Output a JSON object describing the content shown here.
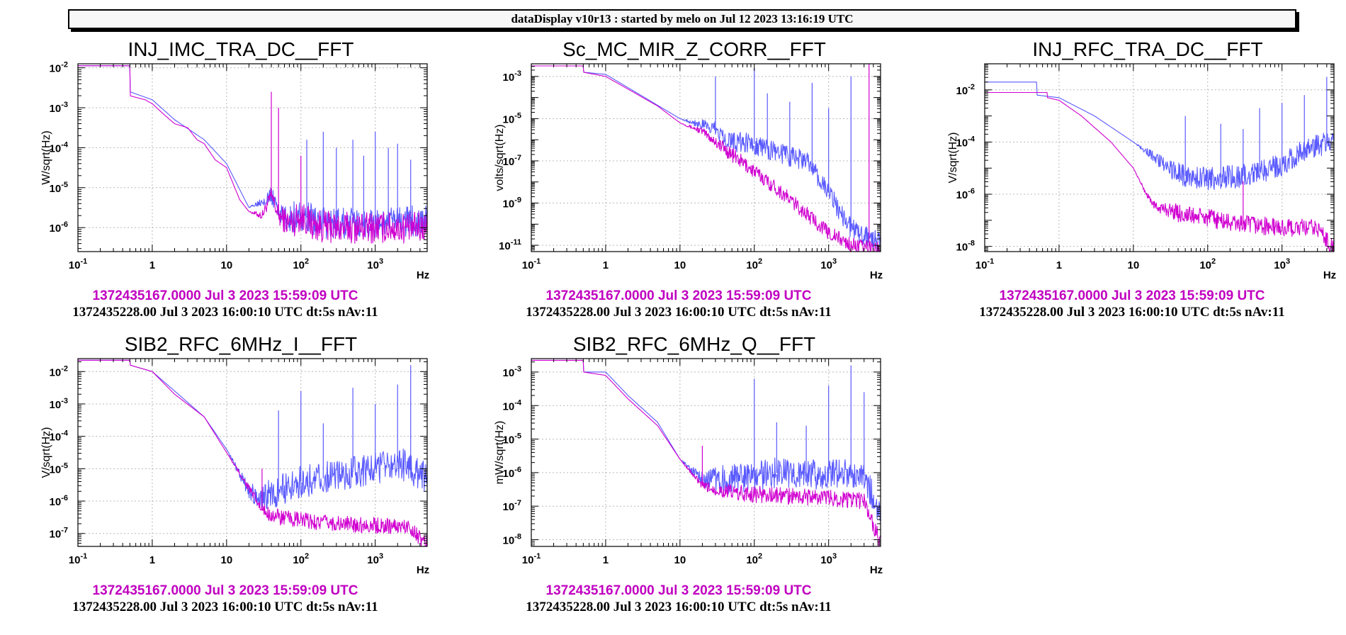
{
  "header": {
    "title": "dataDisplay v10r13 : started by melo on Jul 12 2023 13:16:19 UTC"
  },
  "colors": {
    "ref": "#d000d0",
    "cur": "#5a5aff",
    "grid": "#b8b8b8"
  },
  "chart_data": [
    {
      "type": "line",
      "title": "INJ_IMC_TRA_DC__FFT",
      "ylabel": "W/sqrt(Hz)",
      "xlabel": "Hz",
      "x_scale": "log",
      "y_scale": "log",
      "xlim": [
        0.1,
        5000
      ],
      "ylim_exp": [
        -6.6,
        -1.9
      ],
      "xticks": [
        "10^-1",
        "1",
        "10",
        "10^2",
        "10^3"
      ],
      "yticks": [
        -6,
        -5,
        -4,
        -3,
        -2
      ],
      "grid": true,
      "series": [
        {
          "role": "reference",
          "color": "#d000d0",
          "points": [
            [
              0.1,
              -1.95
            ],
            [
              0.5,
              -1.95
            ],
            [
              0.5,
              -2.7
            ],
            [
              0.8,
              -2.8
            ],
            [
              1,
              -2.9
            ],
            [
              1.5,
              -3.2
            ],
            [
              2,
              -3.4
            ],
            [
              3,
              -3.5
            ],
            [
              4,
              -3.8
            ],
            [
              5,
              -3.9
            ],
            [
              7,
              -4.3
            ],
            [
              10,
              -4.5
            ],
            [
              15,
              -5.3
            ],
            [
              20,
              -5.6
            ],
            [
              30,
              -5.7
            ],
            [
              40,
              -5.2
            ],
            [
              50,
              -5.7
            ],
            [
              70,
              -5.9
            ],
            [
              100,
              -5.7
            ],
            [
              150,
              -5.95
            ],
            [
              300,
              -6.0
            ],
            [
              1000,
              -6.0
            ],
            [
              2000,
              -6.0
            ],
            [
              5000,
              -6.0
            ]
          ],
          "noise_from": 20,
          "noise_amp": 0.4
        },
        {
          "role": "current",
          "color": "#5a5aff",
          "points": [
            [
              0.1,
              -1.95
            ],
            [
              0.5,
              -1.95
            ],
            [
              0.5,
              -2.6
            ],
            [
              1,
              -2.8
            ],
            [
              2,
              -3.3
            ],
            [
              5,
              -3.8
            ],
            [
              10,
              -4.4
            ],
            [
              20,
              -5.5
            ],
            [
              40,
              -5.2
            ],
            [
              60,
              -5.8
            ],
            [
              100,
              -5.7
            ],
            [
              200,
              -5.9
            ],
            [
              1000,
              -5.9
            ],
            [
              5000,
              -5.8
            ]
          ],
          "noise_from": 20,
          "noise_amp": 0.4
        }
      ],
      "spikes": [
        {
          "x": 40,
          "y": -2.6,
          "series": "reference"
        },
        {
          "x": 50,
          "y": -3.0,
          "series": "reference"
        },
        {
          "x": 100,
          "y": -4.2,
          "series": "reference"
        },
        {
          "x": 120,
          "y": -3.8,
          "series": "current"
        },
        {
          "x": 200,
          "y": -3.6,
          "series": "current"
        },
        {
          "x": 300,
          "y": -4.0,
          "series": "current"
        },
        {
          "x": 500,
          "y": -3.8,
          "series": "current"
        },
        {
          "x": 700,
          "y": -4.2,
          "series": "current"
        },
        {
          "x": 1000,
          "y": -3.6,
          "series": "current"
        },
        {
          "x": 1500,
          "y": -4.0,
          "series": "current"
        },
        {
          "x": 2000,
          "y": -3.9,
          "series": "current"
        },
        {
          "x": 3000,
          "y": -4.3,
          "series": "current"
        }
      ],
      "ref_time": "1372435167.0000 Jul 3 2023 15:59:09 UTC",
      "cur_time": "1372435228.00 Jul 3 2023 16:00:10 UTC dt:5s nAv:11"
    },
    {
      "type": "line",
      "title": "Sc_MC_MIR_Z_CORR__FFT",
      "ylabel": "volts/sqrt(Hz)",
      "xlabel": "Hz",
      "x_scale": "log",
      "y_scale": "log",
      "xlim": [
        0.1,
        5000
      ],
      "ylim_exp": [
        -11.3,
        -2.4
      ],
      "xticks": [
        "10^-1",
        "1",
        "10",
        "10^2",
        "10^3"
      ],
      "yticks": [
        -11,
        -9,
        -7,
        -5,
        -3
      ],
      "grid": true,
      "series": [
        {
          "role": "reference",
          "color": "#d000d0",
          "points": [
            [
              0.1,
              -2.5
            ],
            [
              0.5,
              -2.5
            ],
            [
              0.5,
              -2.8
            ],
            [
              1,
              -3.0
            ],
            [
              2,
              -3.6
            ],
            [
              5,
              -4.4
            ],
            [
              10,
              -5.2
            ],
            [
              20,
              -5.6
            ],
            [
              50,
              -6.7
            ],
            [
              100,
              -7.5
            ],
            [
              200,
              -8.3
            ],
            [
              500,
              -9.5
            ],
            [
              1000,
              -10.4
            ],
            [
              2000,
              -11.0
            ],
            [
              5000,
              -11.2
            ]
          ],
          "noise_from": 10,
          "noise_amp": 0.35
        },
        {
          "role": "current",
          "color": "#5a5aff",
          "points": [
            [
              0.1,
              -2.5
            ],
            [
              0.5,
              -2.5
            ],
            [
              0.5,
              -2.8
            ],
            [
              1,
              -2.9
            ],
            [
              3,
              -3.9
            ],
            [
              10,
              -5.0
            ],
            [
              20,
              -5.3
            ],
            [
              30,
              -5.5
            ],
            [
              50,
              -6.1
            ],
            [
              100,
              -6.2
            ],
            [
              200,
              -6.6
            ],
            [
              500,
              -7.0
            ],
            [
              1000,
              -8.5
            ],
            [
              2000,
              -10.2
            ],
            [
              5000,
              -10.9
            ]
          ],
          "noise_from": 10,
          "noise_amp": 0.5
        }
      ],
      "spikes": [
        {
          "x": 30,
          "y": -3.0,
          "series": "current"
        },
        {
          "x": 100,
          "y": -2.6,
          "series": "current"
        },
        {
          "x": 150,
          "y": -3.8,
          "series": "current"
        },
        {
          "x": 300,
          "y": -4.2,
          "series": "current"
        },
        {
          "x": 600,
          "y": -3.3,
          "series": "current"
        },
        {
          "x": 1000,
          "y": -4.5,
          "series": "current"
        },
        {
          "x": 2000,
          "y": -3.0,
          "series": "current"
        },
        {
          "x": 3500,
          "y": -2.4,
          "series": "reference"
        }
      ],
      "ref_time": "1372435167.0000 Jul 3 2023 15:59:09 UTC",
      "cur_time": "1372435228.00 Jul 3 2023 16:00:10 UTC dt:5s nAv:11"
    },
    {
      "type": "line",
      "title": "INJ_RFC_TRA_DC__FFT",
      "ylabel": "V/sqrt(Hz)",
      "xlabel": "Hz",
      "x_scale": "log",
      "y_scale": "log",
      "xlim": [
        0.1,
        5000
      ],
      "ylim_exp": [
        -8.2,
        -1.0
      ],
      "xticks": [
        "10^-1",
        "1",
        "10",
        "10^2",
        "10^3"
      ],
      "yticks": [
        -8,
        -6,
        -4,
        -2
      ],
      "grid": true,
      "series": [
        {
          "role": "reference",
          "color": "#d000d0",
          "points": [
            [
              0.1,
              -2.1
            ],
            [
              0.7,
              -2.1
            ],
            [
              0.7,
              -2.3
            ],
            [
              1,
              -2.4
            ],
            [
              2,
              -3.0
            ],
            [
              5,
              -4.0
            ],
            [
              10,
              -5.0
            ],
            [
              15,
              -6.0
            ],
            [
              20,
              -6.5
            ],
            [
              30,
              -6.6
            ],
            [
              50,
              -6.8
            ],
            [
              100,
              -6.9
            ],
            [
              200,
              -7.1
            ],
            [
              500,
              -7.2
            ],
            [
              1000,
              -7.3
            ],
            [
              3000,
              -7.3
            ],
            [
              5000,
              -8.1
            ]
          ],
          "noise_from": 10,
          "noise_amp": 0.35
        },
        {
          "role": "current",
          "color": "#5a5aff",
          "points": [
            [
              0.1,
              -1.7
            ],
            [
              0.5,
              -1.7
            ],
            [
              0.5,
              -2.2
            ],
            [
              1,
              -2.3
            ],
            [
              3,
              -3.0
            ],
            [
              10,
              -4.0
            ],
            [
              20,
              -4.6
            ],
            [
              30,
              -5.0
            ],
            [
              50,
              -5.3
            ],
            [
              100,
              -5.4
            ],
            [
              300,
              -5.3
            ],
            [
              1000,
              -4.9
            ],
            [
              2000,
              -4.3
            ],
            [
              5000,
              -4.0
            ]
          ],
          "noise_from": 10,
          "noise_amp": 0.45
        }
      ],
      "spikes": [
        {
          "x": 50,
          "y": -3.0,
          "series": "current"
        },
        {
          "x": 150,
          "y": -3.3,
          "series": "current"
        },
        {
          "x": 300,
          "y": -3.5,
          "series": "current"
        },
        {
          "x": 500,
          "y": -2.7,
          "series": "current"
        },
        {
          "x": 1000,
          "y": -2.5,
          "series": "current"
        },
        {
          "x": 2000,
          "y": -2.2,
          "series": "current"
        },
        {
          "x": 4000,
          "y": -1.5,
          "series": "current"
        },
        {
          "x": 300,
          "y": -5.5,
          "series": "reference"
        }
      ],
      "ref_time": "1372435167.0000 Jul 3 2023 15:59:09 UTC",
      "cur_time": "1372435228.00 Jul 3 2023 16:00:10 UTC dt:5s nAv:11"
    },
    {
      "type": "line",
      "title": "SIB2_RFC_6MHz_I__FFT",
      "ylabel": "V/sqrt(Hz)",
      "xlabel": "Hz",
      "x_scale": "log",
      "y_scale": "log",
      "xlim": [
        0.1,
        5000
      ],
      "ylim_exp": [
        -7.4,
        -1.6
      ],
      "xticks": [
        "10^-1",
        "1",
        "10",
        "10^2",
        "10^3"
      ],
      "yticks": [
        -7,
        -6,
        -5,
        -4,
        -3,
        -2
      ],
      "grid": true,
      "series": [
        {
          "role": "reference",
          "color": "#d000d0",
          "points": [
            [
              0.1,
              -1.65
            ],
            [
              0.5,
              -1.65
            ],
            [
              0.5,
              -1.8
            ],
            [
              1,
              -2.0
            ],
            [
              2,
              -2.7
            ],
            [
              5,
              -3.4
            ],
            [
              10,
              -4.5
            ],
            [
              20,
              -5.6
            ],
            [
              30,
              -6.3
            ],
            [
              50,
              -6.5
            ],
            [
              100,
              -6.6
            ],
            [
              300,
              -6.7
            ],
            [
              1000,
              -6.75
            ],
            [
              3000,
              -6.8
            ],
            [
              4500,
              -7.3
            ]
          ],
          "noise_from": 10,
          "noise_amp": 0.25
        },
        {
          "role": "current",
          "color": "#5a5aff",
          "points": [
            [
              0.1,
              -1.65
            ],
            [
              0.5,
              -1.65
            ],
            [
              0.5,
              -1.8
            ],
            [
              1,
              -2.0
            ],
            [
              2,
              -2.6
            ],
            [
              5,
              -3.4
            ],
            [
              10,
              -4.4
            ],
            [
              20,
              -5.7
            ],
            [
              30,
              -5.9
            ],
            [
              50,
              -5.7
            ],
            [
              100,
              -5.4
            ],
            [
              200,
              -5.3
            ],
            [
              500,
              -5.1
            ],
            [
              1000,
              -5.0
            ],
            [
              2000,
              -4.8
            ],
            [
              4500,
              -5.2
            ]
          ],
          "noise_from": 10,
          "noise_amp": 0.5
        }
      ],
      "spikes": [
        {
          "x": 50,
          "y": -3.2,
          "series": "current"
        },
        {
          "x": 100,
          "y": -2.6,
          "series": "current"
        },
        {
          "x": 200,
          "y": -3.6,
          "series": "current"
        },
        {
          "x": 500,
          "y": -2.5,
          "series": "current"
        },
        {
          "x": 1000,
          "y": -3.0,
          "series": "current"
        },
        {
          "x": 2000,
          "y": -2.4,
          "series": "current"
        },
        {
          "x": 3000,
          "y": -1.8,
          "series": "current"
        },
        {
          "x": 30,
          "y": -5.0,
          "series": "reference"
        }
      ],
      "ref_time": "1372435167.0000 Jul 3 2023 15:59:09 UTC",
      "cur_time": "1372435228.00 Jul 3 2023 16:00:10 UTC dt:5s nAv:11"
    },
    {
      "type": "line",
      "title": "SIB2_RFC_6MHz_Q__FFT",
      "ylabel": "mW/sqrt(Hz)",
      "xlabel": "Hz",
      "x_scale": "log",
      "y_scale": "log",
      "xlim": [
        0.1,
        5000
      ],
      "ylim_exp": [
        -8.2,
        -2.6
      ],
      "xticks": [
        "10^-1",
        "1",
        "10",
        "10^2",
        "10^3"
      ],
      "yticks": [
        -8,
        -7,
        -6,
        -5,
        -4,
        -3
      ],
      "grid": true,
      "series": [
        {
          "role": "reference",
          "color": "#d000d0",
          "points": [
            [
              0.1,
              -2.65
            ],
            [
              0.5,
              -2.65
            ],
            [
              0.5,
              -3.0
            ],
            [
              1,
              -3.1
            ],
            [
              2,
              -3.8
            ],
            [
              5,
              -4.6
            ],
            [
              10,
              -5.6
            ],
            [
              20,
              -6.4
            ],
            [
              30,
              -6.5
            ],
            [
              50,
              -6.6
            ],
            [
              100,
              -6.65
            ],
            [
              300,
              -6.7
            ],
            [
              1000,
              -6.75
            ],
            [
              3000,
              -6.85
            ],
            [
              5000,
              -8.1
            ]
          ],
          "noise_from": 10,
          "noise_amp": 0.25
        },
        {
          "role": "current",
          "color": "#5a5aff",
          "points": [
            [
              0.1,
              -2.65
            ],
            [
              0.5,
              -2.65
            ],
            [
              0.5,
              -3.0
            ],
            [
              1,
              -3.0
            ],
            [
              2,
              -3.7
            ],
            [
              5,
              -4.5
            ],
            [
              10,
              -5.6
            ],
            [
              20,
              -6.2
            ],
            [
              50,
              -6.2
            ],
            [
              100,
              -6.1
            ],
            [
              200,
              -6.0
            ],
            [
              500,
              -6.1
            ],
            [
              1000,
              -6.0
            ],
            [
              3000,
              -6.1
            ],
            [
              5000,
              -7.2
            ]
          ],
          "noise_from": 10,
          "noise_amp": 0.45
        }
      ],
      "spikes": [
        {
          "x": 100,
          "y": -3.2,
          "series": "current"
        },
        {
          "x": 200,
          "y": -4.5,
          "series": "current"
        },
        {
          "x": 500,
          "y": -4.6,
          "series": "current"
        },
        {
          "x": 1000,
          "y": -3.4,
          "series": "current"
        },
        {
          "x": 2000,
          "y": -2.8,
          "series": "current"
        },
        {
          "x": 3000,
          "y": -3.6,
          "series": "current"
        },
        {
          "x": 20,
          "y": -5.2,
          "series": "reference"
        }
      ],
      "ref_time": "1372435167.0000 Jul 3 2023 15:59:09 UTC",
      "cur_time": "1372435228.00 Jul 3 2023 16:00:10 UTC dt:5s nAv:11"
    }
  ]
}
